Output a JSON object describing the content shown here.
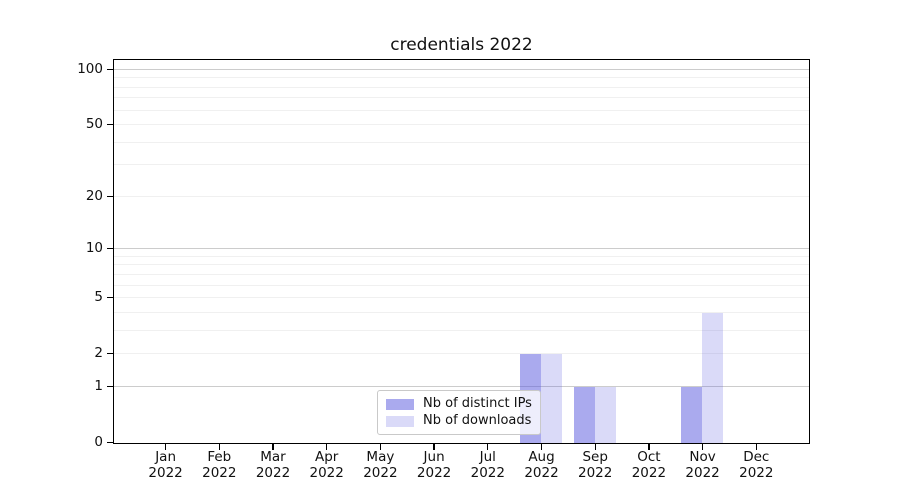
{
  "title": "credentials 2022",
  "chart_data": {
    "type": "bar",
    "title": "credentials 2022",
    "categories": [
      "Jan 2022",
      "Feb 2022",
      "Mar 2022",
      "Apr 2022",
      "May 2022",
      "Jun 2022",
      "Jul 2022",
      "Aug 2022",
      "Sep 2022",
      "Oct 2022",
      "Nov 2022",
      "Dec 2022"
    ],
    "series": [
      {
        "name": "Nb of distinct IPs",
        "color": "#5555dd",
        "fill_alpha": 0.5,
        "values": [
          0,
          0,
          0,
          0,
          0,
          0,
          0,
          2,
          1,
          0,
          1,
          0
        ]
      },
      {
        "name": "Nb of downloads",
        "color": "#5555dd",
        "fill_alpha": 0.22,
        "values": [
          0,
          0,
          0,
          0,
          0,
          0,
          0,
          2,
          1,
          0,
          4,
          0
        ]
      }
    ],
    "yscale": "log1p",
    "ylim": [
      0,
      115
    ],
    "ytick_labels": [
      "0",
      "1",
      "2",
      "5",
      "10",
      "20",
      "50",
      "100"
    ],
    "grid_major_values": [
      1,
      10,
      100
    ],
    "grid_minor_values": [
      2,
      3,
      4,
      5,
      6,
      7,
      8,
      9,
      20,
      30,
      40,
      50,
      60,
      70,
      80,
      90
    ],
    "grid": "horizontal",
    "legend_position": "lower center"
  },
  "colors": {
    "background": "#ffffff",
    "axis": "#000000",
    "grid_major": "#cccccc",
    "grid_minor": "#f0f0f0",
    "bar_dark_rendered": "#a9a9ed",
    "bar_light_rendered": "#d9d9f7"
  }
}
